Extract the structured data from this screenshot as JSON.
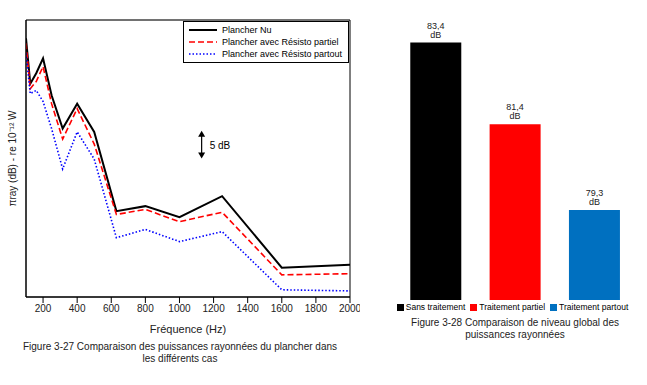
{
  "chart_data": [
    {
      "type": "line",
      "x": [
        100,
        125,
        160,
        200,
        250,
        315,
        400,
        500,
        630,
        800,
        1000,
        1250,
        1600,
        2000
      ],
      "series": [
        {
          "name": "Plancher Nu",
          "color": "#000000",
          "line_style": "solid",
          "values": [
            76.7,
            68.5,
            70.4,
            73.1,
            66.4,
            60.4,
            64.9,
            59.8,
            45.5,
            46.4,
            44.4,
            48.2,
            35.3,
            35.8
          ]
        },
        {
          "name": "Plancher avec Résisto partiel",
          "color": "#ff0000",
          "line_style": "dashed",
          "values": [
            75.8,
            67.6,
            68.9,
            71.6,
            64.9,
            58.5,
            64.0,
            57.6,
            44.9,
            45.8,
            43.6,
            45.3,
            34.0,
            34.2
          ]
        },
        {
          "name": "Plancher avec Résisto partout",
          "color": "#0000ff",
          "line_style": "dotted",
          "values": [
            74.0,
            66.7,
            67.3,
            65.3,
            60.4,
            53.1,
            59.8,
            54.9,
            40.7,
            42.2,
            40.0,
            41.8,
            31.3,
            31.1
          ]
        }
      ],
      "x_label": "Fréquence (Hz)",
      "y_label": "πray (dB) - re 10⁻¹² W",
      "xlim": [
        100,
        2000
      ],
      "xticks": [
        200,
        400,
        600,
        800,
        1000,
        1200,
        1400,
        1600,
        1800,
        2000
      ],
      "ylim": [
        30,
        80
      ],
      "yticks": [
        30,
        40,
        50,
        60,
        70,
        80
      ],
      "grid": true,
      "legend": "upper right",
      "tick_labels": "x",
      "annotations": [
        {
          "text": "5 dB",
          "x": 1130,
          "y": [
            55,
            60
          ]
        }
      ],
      "caption": "Figure 3-27 Comparaison des puissances rayonnées du plancher dans les différents cas"
    },
    {
      "type": "bar",
      "categories": [
        "Sans traitement",
        "Traitement partiel",
        "Traitement partout"
      ],
      "values": [
        83.4,
        81.4,
        79.3
      ],
      "value_labels": [
        "83,4 dB",
        "81,4 dB",
        "79,3 dB"
      ],
      "colors": [
        "#000000",
        "#ff0000",
        "#0070c0"
      ],
      "ylim": [
        77.1,
        84
      ],
      "data_labels": true,
      "legend": "bottom",
      "tick_labels": false,
      "caption": "Figure 3-28 Comparaison de niveau global des puissances rayonnées"
    }
  ]
}
